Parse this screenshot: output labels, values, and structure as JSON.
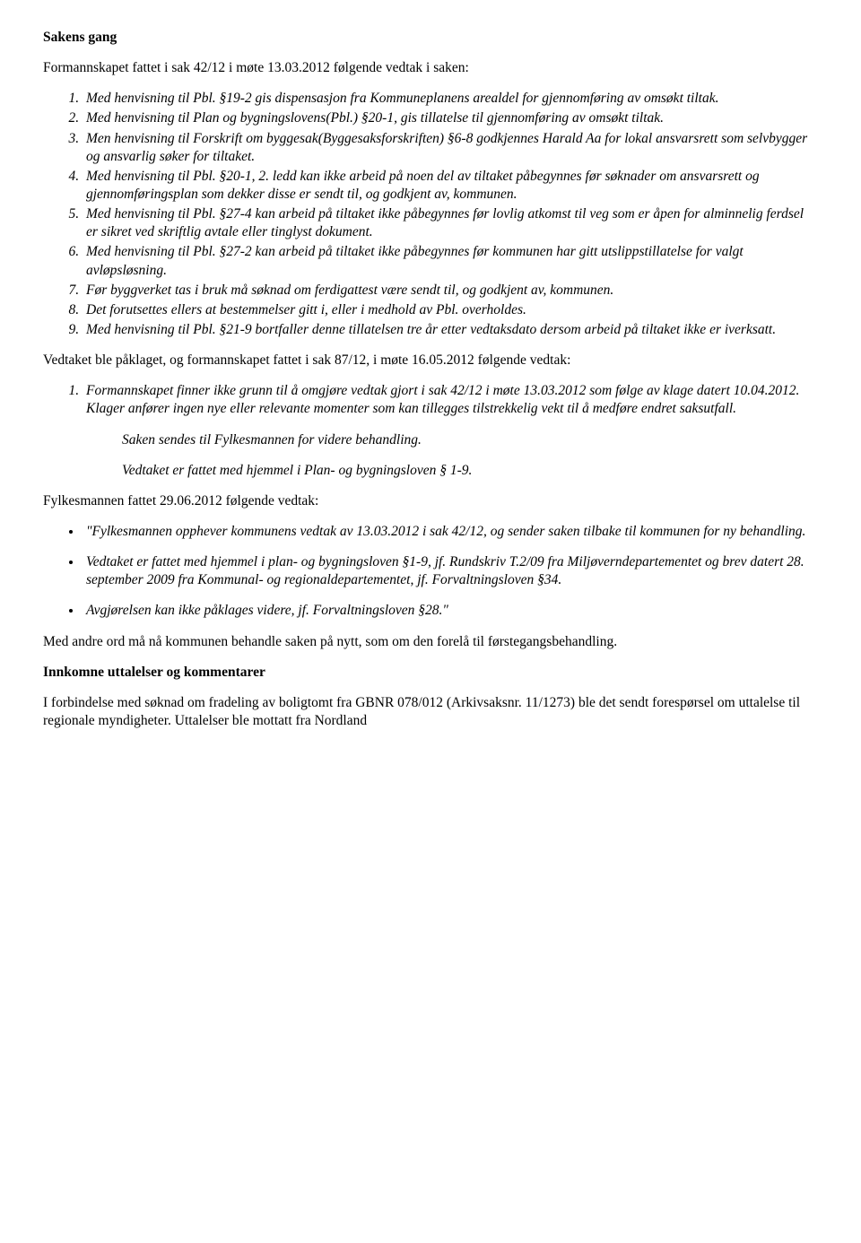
{
  "h1": "Sakens gang",
  "intro1": "Formannskapet fattet i sak 42/12 i møte 13.03.2012 følgende vedtak i saken:",
  "list1": [
    "Med henvisning til Pbl. §19-2 gis dispensasjon fra Kommuneplanens arealdel for gjennomføring av omsøkt tiltak.",
    "Med henvisning til Plan og bygningslovens(Pbl.) §20-1, gis tillatelse til gjennomføring av omsøkt tiltak.",
    "Men henvisning til Forskrift om byggesak(Byggesaksforskriften) §6-8 godkjennes Harald Aa for lokal ansvarsrett som selvbygger og ansvarlig søker for tiltaket.",
    "Med henvisning til Pbl. §20-1, 2. ledd kan ikke arbeid på noen del av tiltaket påbegynnes før søknader om ansvarsrett og gjennomføringsplan som dekker disse er sendt til, og godkjent av, kommunen.",
    "Med henvisning til Pbl. §27-4 kan arbeid på tiltaket ikke påbegynnes før lovlig atkomst til veg som er åpen for alminnelig ferdsel er sikret ved skriftlig avtale eller tinglyst dokument.",
    "Med henvisning til Pbl. §27-2 kan arbeid på tiltaket ikke påbegynnes før kommunen har gitt utslippstillatelse for valgt avløpsløsning.",
    "Før byggverket tas i bruk må søknad om ferdigattest være sendt til, og godkjent av, kommunen.",
    "Det forutsettes ellers at bestemmelser gitt i, eller i medhold av Pbl. overholdes.",
    "Med henvisning til Pbl. §21-9 bortfaller denne tillatelsen tre år etter vedtaksdato dersom arbeid på tiltaket ikke er iverksatt."
  ],
  "intro2": "Vedtaket ble påklaget, og formannskapet fattet i sak 87/12, i møte 16.05.2012 følgende vedtak:",
  "list2": [
    "Formannskapet finner ikke grunn til å omgjøre vedtak gjort i sak 42/12 i møte 13.03.2012 som følge av klage datert 10.04.2012. Klager anfører ingen nye eller relevante momenter som kan tillegges tilstrekkelig vekt til å medføre endret saksutfall."
  ],
  "indent1": "Saken sendes til Fylkesmannen for videre behandling.",
  "indent2": "Vedtaket er fattet med hjemmel i Plan- og bygningsloven § 1-9.",
  "intro3": "Fylkesmannen fattet 29.06.2012 følgende vedtak:",
  "list3": [
    "\"Fylkesmannen opphever kommunens vedtak av 13.03.2012 i sak 42/12, og sender saken tilbake til kommunen for ny behandling.",
    "Vedtaket er fattet med hjemmel i plan- og bygningsloven §1-9, jf. Rundskriv T.2/09 fra Miljøverndepartementet og brev datert 28. september 2009 fra Kommunal- og regionaldepartementet, jf. Forvaltningsloven §34.",
    "Avgjørelsen kan ikke påklages videre, jf. Forvaltningsloven §28.\""
  ],
  "para1": "Med andre ord må nå kommunen behandle saken på nytt, som om den forelå til førstegangsbehandling.",
  "h2": "Innkomne uttalelser og kommentarer",
  "para2": "I forbindelse med søknad om fradeling av boligtomt fra GBNR 078/012 (Arkivsaksnr. 11/1273) ble det sendt forespørsel om uttalelse til regionale myndigheter. Uttalelser ble mottatt fra Nordland"
}
